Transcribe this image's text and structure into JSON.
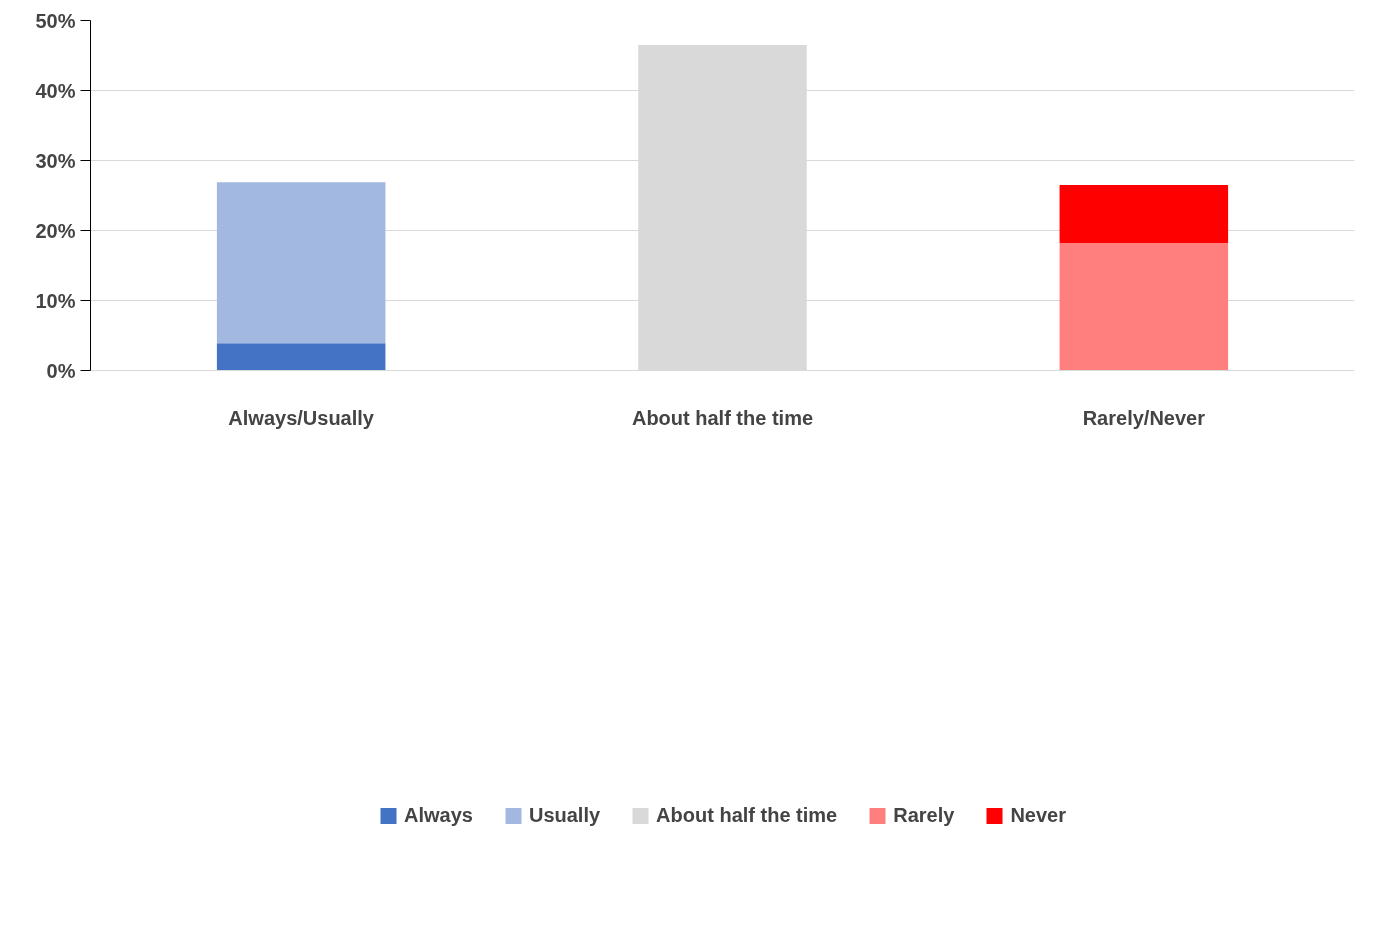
{
  "chart_data": {
    "type": "bar",
    "stacked": true,
    "categories": [
      "Always/Usually",
      "About half the time",
      "Rarely/Never"
    ],
    "series": [
      {
        "name": "Always",
        "color": "#4472c4",
        "values": [
          3.9,
          null,
          null
        ]
      },
      {
        "name": "Usually",
        "color": "#a2b8e0",
        "values": [
          23.0,
          null,
          null
        ]
      },
      {
        "name": "About half the time",
        "color": "#d9d9d9",
        "values": [
          null,
          46.5,
          null
        ]
      },
      {
        "name": "Rarely",
        "color": "#ff7f7f",
        "values": [
          null,
          null,
          18.2
        ]
      },
      {
        "name": "Never",
        "color": "#ff0000",
        "values": [
          null,
          null,
          8.3
        ]
      }
    ],
    "ylim": [
      0,
      50
    ],
    "yticks": [
      {
        "value": 0,
        "label": "0%"
      },
      {
        "value": 10,
        "label": "10%"
      },
      {
        "value": 20,
        "label": "20%"
      },
      {
        "value": 30,
        "label": "30%"
      },
      {
        "value": 40,
        "label": "40%"
      },
      {
        "value": 50,
        "label": "50%"
      }
    ],
    "grid": "y",
    "legend": "bottom"
  }
}
